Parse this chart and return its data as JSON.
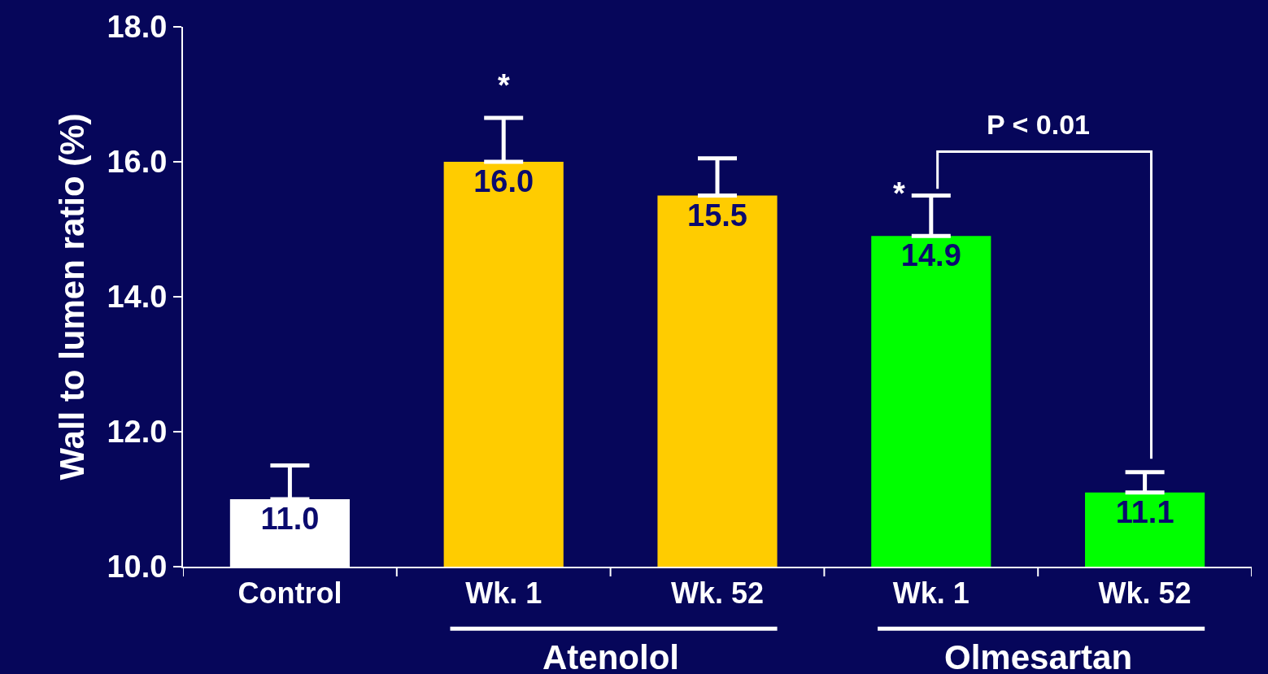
{
  "chart_data": {
    "type": "bar",
    "ylabel": "Wall to lumen ratio (%)",
    "categories": [
      "Control",
      "Wk. 1",
      "Wk. 52",
      "Wk. 1",
      "Wk. 52"
    ],
    "values": [
      11.0,
      16.0,
      15.5,
      14.9,
      11.1
    ],
    "colors": [
      "#ffffff",
      "#ffcc00",
      "#ffcc00",
      "#00ff00",
      "#00ff00"
    ],
    "errors": [
      [
        11.0,
        11.5
      ],
      [
        16.0,
        16.65
      ],
      [
        15.5,
        16.05
      ],
      [
        14.9,
        15.5
      ],
      [
        11.1,
        11.4
      ]
    ],
    "value_labels": [
      "11.0",
      "16.0",
      "15.5",
      "14.9",
      "11.1"
    ],
    "ylim": [
      10,
      18
    ],
    "yticks": [
      {
        "value": 10,
        "label": "10.0"
      },
      {
        "value": 12,
        "label": "12.0"
      },
      {
        "value": 14,
        "label": "14.0"
      },
      {
        "value": 16,
        "label": "16.0"
      },
      {
        "value": 18,
        "label": "18.0"
      }
    ],
    "annotations": [
      "*",
      "*",
      "P < 0.01",
      "Atenolol",
      "Olmesartan"
    ]
  }
}
